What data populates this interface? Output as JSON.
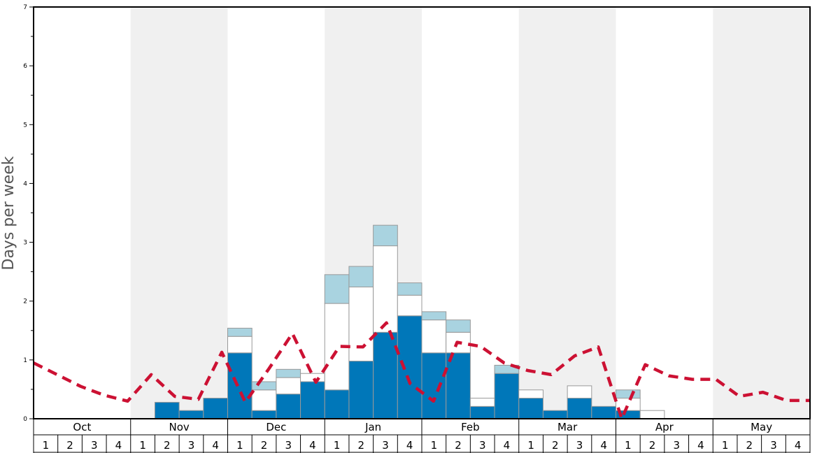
{
  "chart_data": {
    "type": "bar",
    "ylabel": "Days per week",
    "ylim": [
      0,
      7
    ],
    "y_ticks": [
      "0",
      "1",
      "2",
      "3",
      "4",
      "5",
      "6",
      "7"
    ],
    "months": [
      "Oct",
      "Nov",
      "Dec",
      "Jan",
      "Feb",
      "Mar",
      "Apr",
      "May"
    ],
    "week_labels": [
      "1",
      "2",
      "3",
      "4"
    ],
    "grid": false,
    "legend": "none",
    "colors": {
      "bottom": "#0077b9",
      "middle": "#ffffff",
      "top": "#a9d3e0",
      "line": "#cc1133",
      "shade": "#f0f0f0"
    },
    "series": [
      {
        "values": [
          0,
          0,
          0,
          0,
          0,
          0.28,
          0.14,
          0.35,
          1.12,
          0.14,
          0.42,
          0.63,
          0.49,
          0.98,
          1.47,
          1.75,
          1.12,
          1.12,
          0.21,
          0.77,
          0.35,
          0.14,
          0.35,
          0.21,
          0.14,
          0,
          0,
          0,
          0,
          0,
          0,
          0
        ]
      },
      {
        "values": [
          0,
          0,
          0,
          0,
          0,
          0,
          0,
          0,
          0.28,
          0.35,
          0.28,
          0.14,
          1.47,
          1.26,
          1.47,
          0.35,
          0.56,
          0.35,
          0.14,
          0,
          0.14,
          0,
          0.21,
          0,
          0.21,
          0.14,
          0,
          0,
          0,
          0,
          0,
          0
        ]
      },
      {
        "values": [
          0,
          0,
          0,
          0,
          0,
          0,
          0,
          0,
          0.14,
          0.14,
          0.14,
          0,
          0.49,
          0.35,
          0.35,
          0.21,
          0.14,
          0.21,
          0,
          0.14,
          0,
          0,
          0,
          0,
          0.14,
          0,
          0,
          0,
          0,
          0,
          0,
          0
        ]
      },
      {
        "values": [
          0.95,
          0.75,
          0.55,
          0.4,
          0.3,
          0.75,
          0.38,
          0.33,
          1.13,
          0.28,
          0.85,
          1.45,
          0.62,
          1.23,
          1.22,
          1.63,
          0.6,
          0.3,
          1.3,
          1.23,
          0.95,
          0.82,
          0.75,
          1.07,
          1.22,
          0,
          0.92,
          0.73,
          0.67,
          0.67,
          0.38,
          0.45,
          0.31,
          0.31
        ]
      }
    ]
  }
}
